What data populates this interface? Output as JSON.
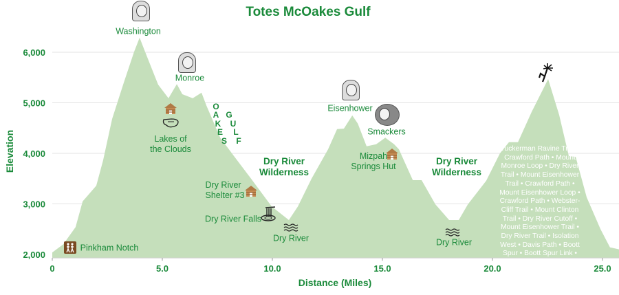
{
  "chart_data": {
    "type": "area",
    "title": "Totes McOakes Gulf",
    "xlabel": "Distance (Miles)",
    "ylabel": "Elevation",
    "xlim": [
      0,
      25.75
    ],
    "ylim": [
      1930,
      6500
    ],
    "grid": "horizontal",
    "fill_color": "#c5dfbb",
    "text_color": "#1a8a3a",
    "x_ticks": [
      0,
      5,
      10,
      15,
      20,
      25
    ],
    "x_tick_labels": [
      "0",
      "5.0",
      "10.0",
      "15.0",
      "20.0",
      "25.0"
    ],
    "y_ticks": [
      2000,
      3000,
      4000,
      5000,
      6000
    ],
    "y_tick_labels": [
      "2,000",
      "3,000",
      "4,000",
      "5,000",
      "6,000"
    ],
    "x": [
      0,
      0.5,
      1.06,
      1.38,
      2.0,
      2.31,
      2.72,
      3.25,
      3.72,
      3.97,
      4.19,
      4.81,
      5.28,
      5.66,
      5.91,
      6.38,
      6.78,
      7.0,
      7.63,
      8.25,
      9.03,
      9.97,
      10.75,
      11.16,
      11.78,
      12.53,
      12.94,
      13.25,
      13.63,
      13.88,
      14.28,
      14.72,
      15.13,
      15.53,
      15.75,
      16.38,
      16.78,
      17.41,
      18.03,
      18.47,
      18.88,
      19.72,
      20.34,
      20.75,
      21.16,
      21.78,
      22.53,
      23.03,
      23.47,
      23.78,
      24.28,
      24.91,
      25.34,
      25.75
    ],
    "y": [
      2040,
      2200,
      2540,
      3050,
      3360,
      3860,
      4680,
      5400,
      6010,
      6290,
      6040,
      5360,
      5090,
      5370,
      5170,
      5090,
      5200,
      4950,
      4310,
      3950,
      3500,
      2950,
      2680,
      2950,
      3500,
      4080,
      4480,
      4490,
      4750,
      4590,
      4140,
      4180,
      4310,
      4180,
      4080,
      3470,
      3470,
      2990,
      2680,
      2680,
      2990,
      3460,
      4000,
      4220,
      4220,
      4820,
      5470,
      4760,
      3950,
      3930,
      3130,
      2500,
      2140,
      2100
    ],
    "annotations": {
      "washington": "Washington",
      "monroe": "Monroe",
      "oakes": [
        "O",
        "A",
        "K",
        "E",
        "S"
      ],
      "gulf": [
        "G",
        "U",
        "L",
        "F"
      ],
      "lakes": [
        "Lakes of",
        "the Clouds"
      ],
      "wilderness1": [
        "Dry River",
        "Wilderness"
      ],
      "shelter": [
        "Dry River",
        "Shelter #3"
      ],
      "falls": "Dry River Falls",
      "dry_river_1": "Dry River",
      "eisenhower": "Eisenhower",
      "smackers": "Smackers",
      "mizpah": [
        "Mizpah",
        "Springs Hut"
      ],
      "wilderness2": [
        "Dry River",
        "Wilderness"
      ],
      "dry_river_2": "Dry River",
      "pinkham": "Pinkham Notch",
      "trails": "Tuckerman Ravine Trail • Crawford Path • Mount Monroe Loop • Dry River Trail • Mount Eisenhower Trail • Crawford Path • Mount Eisenhower Loop • Crawford Path • Webster-Cliff Trail • Mount Clinton Trail • Dry River Cutoff • Mount Eisenhower Trail • Dry River Trail • Isolation West • Davis Path • Boott Spur • Boott Spur Link • Sherbie"
    },
    "icons": [
      "washington-portrait",
      "monroe-portrait",
      "cabin",
      "lake",
      "cabin",
      "waterfall",
      "water-waves",
      "eisenhower-portrait",
      "dog-photo",
      "cabin",
      "water-waves",
      "palm-tree-figure",
      "hikers-sign"
    ]
  }
}
